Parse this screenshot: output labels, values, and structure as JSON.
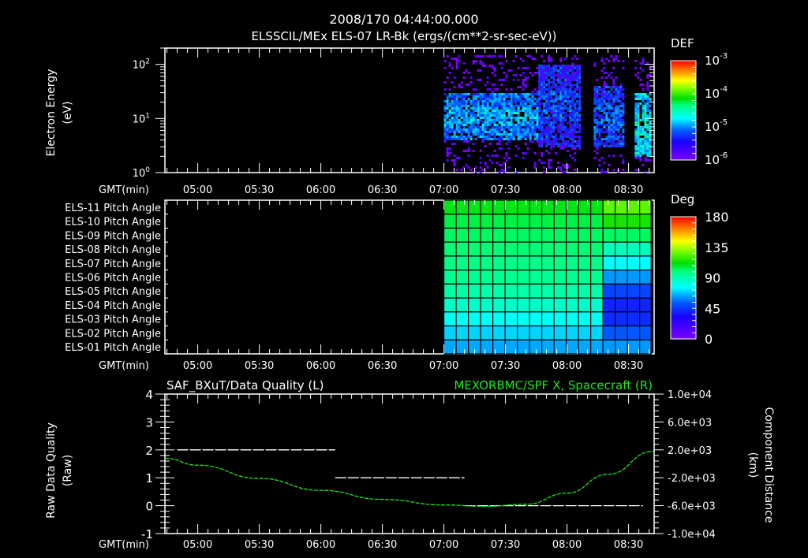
{
  "header": {
    "timestamp": "2008/170 04:44:00.000",
    "title": "ELSSCIL/MEx ELS-07 LR-Bk  (ergs/(cm**2-sr-sec-eV))"
  },
  "time_axis": {
    "label": "GMT(min)",
    "ticks": [
      "05:00",
      "05:30",
      "06:00",
      "06:30",
      "07:00",
      "07:30",
      "08:00",
      "08:30"
    ]
  },
  "panel1": {
    "ylabel": "Electron Energy",
    "yunit": "(eV)",
    "yticks": [
      {
        "base": "10",
        "exp": "2"
      },
      {
        "base": "10",
        "exp": "1"
      },
      {
        "base": "10",
        "exp": "0"
      }
    ],
    "colorbar": {
      "title": "DEF",
      "ticks": [
        {
          "base": "10",
          "exp": "-3"
        },
        {
          "base": "10",
          "exp": "-4"
        },
        {
          "base": "10",
          "exp": "-5"
        },
        {
          "base": "10",
          "exp": "-6"
        }
      ]
    }
  },
  "panel2": {
    "row_labels": [
      "ELS-11 Pitch Angle",
      "ELS-10 Pitch Angle",
      "ELS-09 Pitch Angle",
      "ELS-08 Pitch Angle",
      "ELS-07 Pitch Angle",
      "ELS-06 Pitch Angle",
      "ELS-05 Pitch Angle",
      "ELS-04 Pitch Angle",
      "ELS-03 Pitch Angle",
      "ELS-02 Pitch Angle",
      "ELS-01 Pitch Angle"
    ],
    "colorbar": {
      "title": "Deg",
      "ticks": [
        "180",
        "135",
        "90",
        "45",
        "0"
      ]
    }
  },
  "panel3": {
    "left_title": "SAF_BXuT/Data Quality (L)",
    "right_title": "MEXORBMC/SPF X, Spacecraft (R)",
    "ylabel_left": "Raw Data Quality",
    "yunit_left": "(Raw)",
    "yticks_left": [
      "4",
      "3",
      "2",
      "1",
      "0",
      "-1"
    ],
    "ylabel_right": "Component Distance",
    "yunit_right": "(km)",
    "yticks_right": [
      "1.0e+04",
      "6.0e+03",
      "2.0e+03",
      "-2.0e+03",
      "-6.0e+03",
      "-1.0e+04"
    ]
  },
  "colors": {
    "background": "#000000",
    "axes": "#ffffff",
    "right_series": "#1ee61e"
  },
  "chart_data": [
    {
      "type": "heatmap",
      "title": "ELSSCIL/MEx ELS-07 LR-Bk  (ergs/(cm**2-sr-sec-eV))",
      "xlabel": "GMT(min)",
      "ylabel": "Electron Energy (eV)",
      "yscale": "log",
      "ylim": [
        1,
        200
      ],
      "x_range": [
        "04:44",
        "08:42"
      ],
      "x_ticks": [
        "05:00",
        "05:30",
        "06:00",
        "06:30",
        "07:00",
        "07:30",
        "08:00",
        "08:30"
      ],
      "colorbar": {
        "label": "DEF",
        "scale": "log",
        "range": [
          1e-06,
          0.001
        ]
      },
      "data_segments": [
        {
          "start": "07:00",
          "end": "07:46",
          "energy_core_eV": [
            4,
            30
          ],
          "level": "~1e-5"
        },
        {
          "start": "07:46",
          "end": "08:06",
          "energy_core_eV": [
            3,
            100
          ],
          "level": "~3e-6"
        },
        {
          "start": "08:13",
          "end": "08:28",
          "energy_core_eV": [
            3,
            40
          ],
          "level": "~5e-6"
        },
        {
          "start": "08:33",
          "end": "08:41",
          "energy_core_eV": [
            2,
            30
          ],
          "level": "~3e-5"
        }
      ]
    },
    {
      "type": "heatmap",
      "xlabel": "GMT(min)",
      "categories": [
        "ELS-11",
        "ELS-10",
        "ELS-09",
        "ELS-08",
        "ELS-07",
        "ELS-06",
        "ELS-05",
        "ELS-04",
        "ELS-03",
        "ELS-02",
        "ELS-01"
      ],
      "colorbar": {
        "label": "Deg",
        "range": [
          0,
          180
        ],
        "ticks": [
          0,
          45,
          90,
          135,
          180
        ]
      },
      "x_range": [
        "04:44",
        "08:42"
      ],
      "data_start": "07:00",
      "data_end": "08:41",
      "values_deg_before_0814": [
        110,
        105,
        102,
        100,
        98,
        96,
        92,
        86,
        78,
        70,
        64
      ],
      "values_deg_after_0814": [
        125,
        115,
        102,
        88,
        76,
        62,
        48,
        40,
        42,
        52,
        62
      ]
    },
    {
      "type": "line",
      "title_left": "SAF_BXuT/Data Quality (L)",
      "title_right": "MEXORBMC/SPF X, Spacecraft (R)",
      "xlabel": "GMT(min)",
      "ylabel_left": "Raw Data Quality (Raw)",
      "ylim_left": [
        -1,
        4
      ],
      "ylabel_right": "Component Distance (km)",
      "ylim_right": [
        -10000,
        10000
      ],
      "series": [
        {
          "name": "SAF_BXuT/Data Quality",
          "axis": "left",
          "color": "#ffffff",
          "style": "dashed",
          "x": [
            "04:50",
            "06:07",
            "06:07",
            "07:10",
            "07:10",
            "08:37"
          ],
          "values": [
            2,
            2,
            1,
            1,
            0,
            0
          ]
        },
        {
          "name": "MEXORBMC/SPF X, Spacecraft",
          "axis": "right",
          "color": "#1ee61e",
          "x": [
            "04:44",
            "05:00",
            "05:30",
            "06:00",
            "06:30",
            "07:00",
            "07:20",
            "07:40",
            "08:00",
            "08:20",
            "08:42"
          ],
          "values": [
            800,
            -200,
            -2100,
            -3800,
            -5100,
            -5900,
            -6100,
            -5800,
            -4200,
            -1500,
            1800
          ]
        }
      ]
    }
  ]
}
